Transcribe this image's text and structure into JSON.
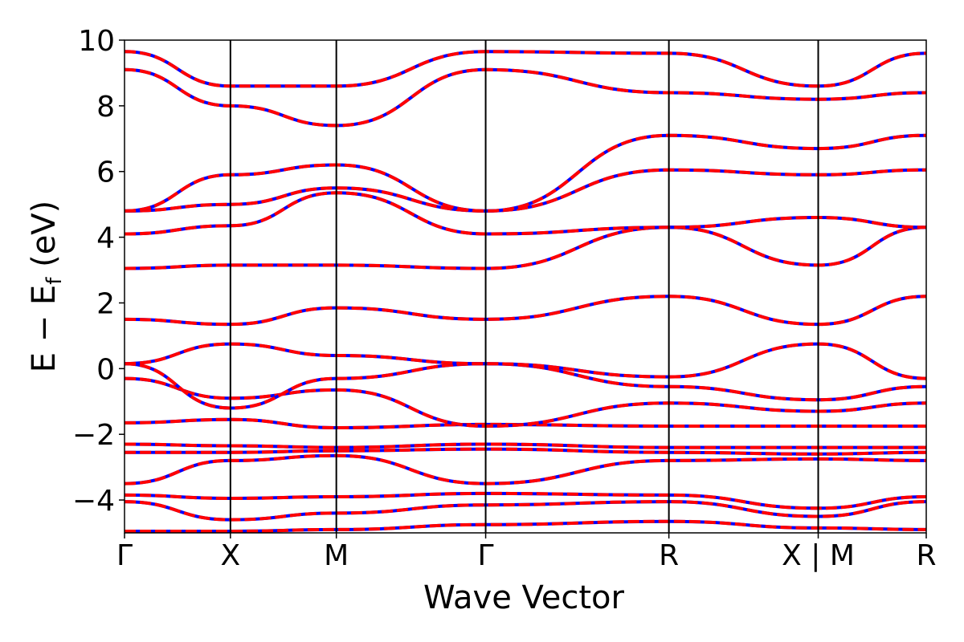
{
  "chart_data": {
    "type": "line",
    "title": "",
    "xlabel": "Wave Vector",
    "ylabel": "E − E_f (eV)",
    "ylabel_parts": {
      "main": "E − E",
      "sub": "f",
      "unit": "(eV)"
    },
    "ylim": [
      -5,
      10
    ],
    "yticks": [
      -4,
      -2,
      0,
      2,
      4,
      6,
      8,
      10
    ],
    "ytick_labels": [
      "−4",
      "−2",
      "0",
      "2",
      "4",
      "6",
      "8",
      "10"
    ],
    "xlim": [
      0,
      7.57
    ],
    "kpoints": [
      {
        "label": "Γ",
        "x": 0
      },
      {
        "label": "X",
        "x": 1.0
      },
      {
        "label": "M",
        "x": 2.0
      },
      {
        "label": "Γ",
        "x": 3.41
      },
      {
        "label": "R",
        "x": 5.14
      },
      {
        "label": "X | M",
        "x": 6.55
      },
      {
        "label": "R",
        "x": 7.57
      }
    ],
    "line_colors": {
      "solid": "#0000ff",
      "dashed": "#ff0000"
    },
    "series": [
      {
        "values": [
          -4.95,
          -4.95,
          -4.9,
          -4.75,
          -4.65,
          -4.85,
          -4.9
        ]
      },
      {
        "values": [
          -4.05,
          -4.6,
          -4.4,
          -4.15,
          -4.05,
          -4.5,
          -4.05
        ]
      },
      {
        "values": [
          -3.85,
          -3.95,
          -3.9,
          -3.8,
          -3.85,
          -4.25,
          -3.9
        ]
      },
      {
        "values": [
          -3.5,
          -2.8,
          -2.65,
          -3.5,
          -2.8,
          -2.75,
          -2.8
        ]
      },
      {
        "values": [
          -2.55,
          -2.55,
          -2.5,
          -2.45,
          -2.55,
          -2.6,
          -2.55
        ]
      },
      {
        "values": [
          -2.3,
          -2.35,
          -2.4,
          -2.3,
          -2.4,
          -2.4,
          -2.4
        ]
      },
      {
        "values": [
          -1.65,
          -1.55,
          -1.8,
          -1.7,
          -1.75,
          -1.75,
          -1.75
        ]
      },
      {
        "values": [
          -0.3,
          -0.9,
          -0.65,
          -1.75,
          -1.05,
          -1.3,
          -1.05
        ]
      },
      {
        "values": [
          0.15,
          -1.2,
          -0.3,
          0.15,
          -0.55,
          -0.95,
          -0.55
        ]
      },
      {
        "values": [
          0.15,
          0.75,
          0.4,
          0.15,
          -0.25,
          0.75,
          -0.3
        ]
      },
      {
        "values": [
          1.5,
          1.35,
          1.85,
          1.5,
          2.2,
          1.35,
          2.2
        ]
      },
      {
        "values": [
          3.05,
          3.15,
          3.15,
          3.05,
          4.3,
          3.15,
          4.3
        ]
      },
      {
        "values": [
          4.1,
          4.35,
          5.35,
          4.1,
          4.3,
          4.6,
          4.3
        ]
      },
      {
        "values": [
          4.8,
          5.0,
          5.5,
          4.8,
          6.05,
          5.9,
          6.05
        ]
      },
      {
        "values": [
          4.8,
          5.9,
          6.2,
          4.8,
          7.1,
          6.7,
          7.1
        ]
      },
      {
        "values": [
          9.1,
          8.0,
          7.4,
          9.1,
          8.4,
          8.2,
          8.4
        ]
      },
      {
        "values": [
          9.65,
          8.6,
          8.6,
          9.65,
          9.6,
          8.6,
          9.6
        ]
      }
    ]
  }
}
